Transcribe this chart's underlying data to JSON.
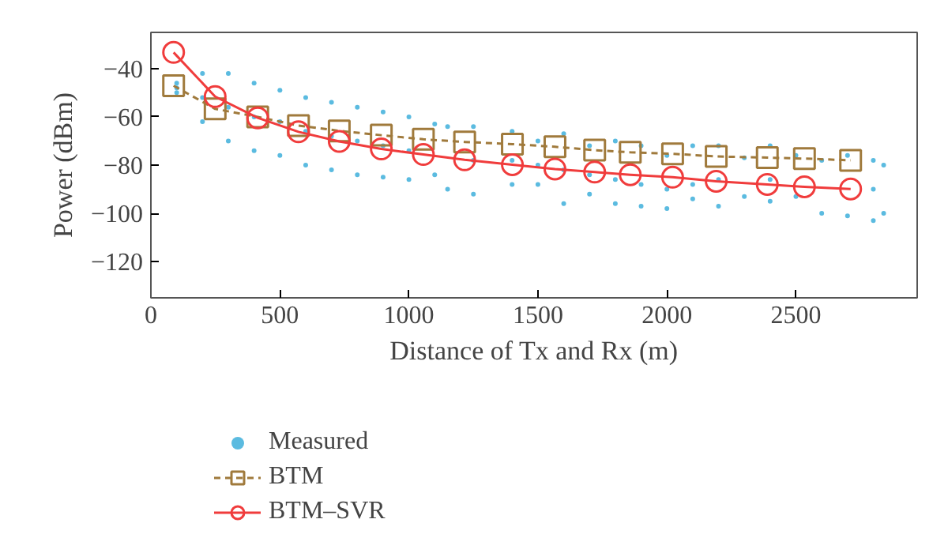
{
  "chart_data": {
    "type": "line",
    "xlabel": "Distance of Tx and Rx (m)",
    "ylabel": "Power (dBm)",
    "xlim": [
      0,
      2970
    ],
    "xticks": [
      0,
      500,
      1000,
      1500,
      2000,
      2500
    ],
    "ylim": [
      -135,
      -25
    ],
    "yticks": [
      {
        "value": -120,
        "label": "−120"
      },
      {
        "value": -100,
        "label": "−100"
      },
      {
        "value": -80,
        "label": "−80"
      },
      {
        "value": -60,
        "label": "−60"
      },
      {
        "value": -40,
        "label": "−40"
      }
    ],
    "grid": false,
    "legend": "bottom",
    "series": [
      {
        "name": "Measured",
        "type": "scatter",
        "marker": "circle",
        "color": "#5bbbe0",
        "x": [
          100,
          100,
          100,
          200,
          200,
          200,
          300,
          300,
          300,
          400,
          400,
          400,
          500,
          500,
          500,
          600,
          600,
          600,
          700,
          700,
          700,
          800,
          800,
          800,
          900,
          900,
          900,
          1000,
          1000,
          1000,
          1100,
          1100,
          1150,
          1150,
          1250,
          1250,
          1250,
          1400,
          1400,
          1400,
          1500,
          1500,
          1500,
          1600,
          1600,
          1600,
          1700,
          1700,
          1700,
          1800,
          1800,
          1800,
          1900,
          1900,
          1900,
          2000,
          2000,
          2000,
          2100,
          2100,
          2100,
          2200,
          2200,
          2200,
          2300,
          2300,
          2400,
          2400,
          2400,
          2500,
          2500,
          2600,
          2600,
          2700,
          2700,
          2800,
          2800,
          2800,
          2840,
          2840
        ],
        "values": [
          -46,
          -48,
          -50,
          -42,
          -52,
          -62,
          -42,
          -56,
          -70,
          -46,
          -60,
          -74,
          -49,
          -62,
          -76,
          -52,
          -66,
          -80,
          -54,
          -68,
          -82,
          -56,
          -70,
          -84,
          -58,
          -72,
          -85,
          -60,
          -74,
          -86,
          -63,
          -84,
          -64,
          -90,
          -64,
          -78,
          -92,
          -66,
          -78,
          -88,
          -70,
          -80,
          -88,
          -67,
          -82,
          -96,
          -72,
          -84,
          -92,
          -70,
          -86,
          -96,
          -72,
          -88,
          -97,
          -76,
          -90,
          -98,
          -72,
          -88,
          -94,
          -72,
          -86,
          -97,
          -77,
          -93,
          -72,
          -86,
          -95,
          -76,
          -93,
          -78,
          -100,
          -76,
          -101,
          -78,
          -90,
          -103,
          -80,
          -100
        ]
      },
      {
        "name": "BTM",
        "type": "line",
        "marker": "square",
        "line_style": "dashed",
        "color": "#a07a3c",
        "x": [
          88,
          249,
          414,
          572,
          730,
          893,
          1056,
          1216,
          1401,
          1566,
          1720,
          1858,
          2022,
          2191,
          2389,
          2533,
          2712
        ],
        "values": [
          -47.1,
          -56.7,
          -60.0,
          -63.6,
          -65.8,
          -67.6,
          -69.3,
          -70.4,
          -71.3,
          -72.4,
          -73.8,
          -74.7,
          -75.3,
          -76.4,
          -76.9,
          -77.3,
          -78.0
        ]
      },
      {
        "name": "BTM–SVR",
        "type": "line",
        "marker": "circle",
        "line_style": "solid",
        "color": "#f03c3c",
        "x": [
          88,
          249,
          414,
          572,
          730,
          893,
          1056,
          1216,
          1401,
          1566,
          1720,
          1858,
          2022,
          2191,
          2389,
          2533,
          2712
        ],
        "values": [
          -33.3,
          -51.6,
          -60.4,
          -66.2,
          -70.2,
          -73.3,
          -75.6,
          -77.8,
          -79.8,
          -81.6,
          -82.9,
          -84.0,
          -85.0,
          -86.7,
          -88.0,
          -89.0,
          -89.9
        ]
      }
    ]
  }
}
